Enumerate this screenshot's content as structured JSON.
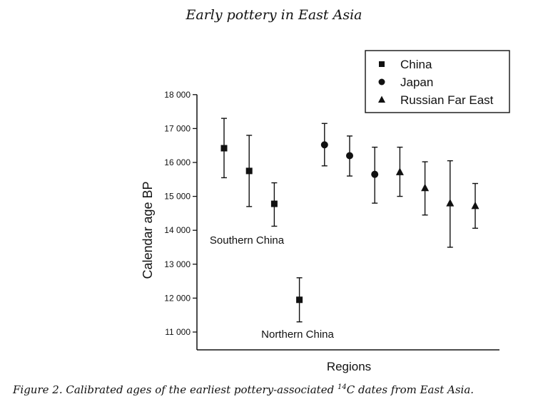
{
  "page": {
    "header": "Early pottery in East Asia",
    "caption_prefix": "Figure 2.  Calibrated ages of the earliest pottery-associated ",
    "caption_sup": "14",
    "caption_suffix": "C dates from East Asia."
  },
  "chart_data": {
    "type": "scatter",
    "title": "",
    "xlabel": "Regions",
    "ylabel": "Calendar age BP",
    "ylim": [
      10500,
      18000
    ],
    "yticks": [
      11000,
      12000,
      13000,
      14000,
      15000,
      16000,
      17000,
      18000
    ],
    "ytick_labels": [
      "11 000",
      "12 000",
      "13 000",
      "14 000",
      "15 000",
      "16 000",
      "17 000",
      "18 000"
    ],
    "x_positions": [
      1,
      2,
      3,
      4,
      5,
      6,
      7,
      8,
      9,
      10,
      11
    ],
    "grid": false,
    "legend_position": "top-right",
    "series": [
      {
        "name": "China",
        "marker": "square",
        "points": [
          {
            "x": 1,
            "y": 16420,
            "low": 15550,
            "high": 17300
          },
          {
            "x": 2,
            "y": 15750,
            "low": 14700,
            "high": 16800
          },
          {
            "x": 3,
            "y": 14780,
            "low": 14120,
            "high": 15400
          },
          {
            "x": 4,
            "y": 11950,
            "low": 11300,
            "high": 12600
          }
        ]
      },
      {
        "name": "Japan",
        "marker": "circle",
        "points": [
          {
            "x": 5,
            "y": 16520,
            "low": 15900,
            "high": 17150
          },
          {
            "x": 6,
            "y": 16200,
            "low": 15600,
            "high": 16780
          },
          {
            "x": 7,
            "y": 15650,
            "low": 14800,
            "high": 16450
          }
        ]
      },
      {
        "name": "Russian Far East",
        "marker": "triangle",
        "points": [
          {
            "x": 8,
            "y": 15720,
            "low": 15000,
            "high": 16450
          },
          {
            "x": 9,
            "y": 15250,
            "low": 14450,
            "high": 16020
          },
          {
            "x": 10,
            "y": 14800,
            "low": 13500,
            "high": 16050
          },
          {
            "x": 11,
            "y": 14720,
            "low": 14060,
            "high": 15380
          }
        ]
      }
    ],
    "annotations": [
      {
        "text": "Southern China",
        "x": 2,
        "y": 13700
      },
      {
        "text": "Northern China",
        "x": 4,
        "y": 10950
      }
    ]
  }
}
